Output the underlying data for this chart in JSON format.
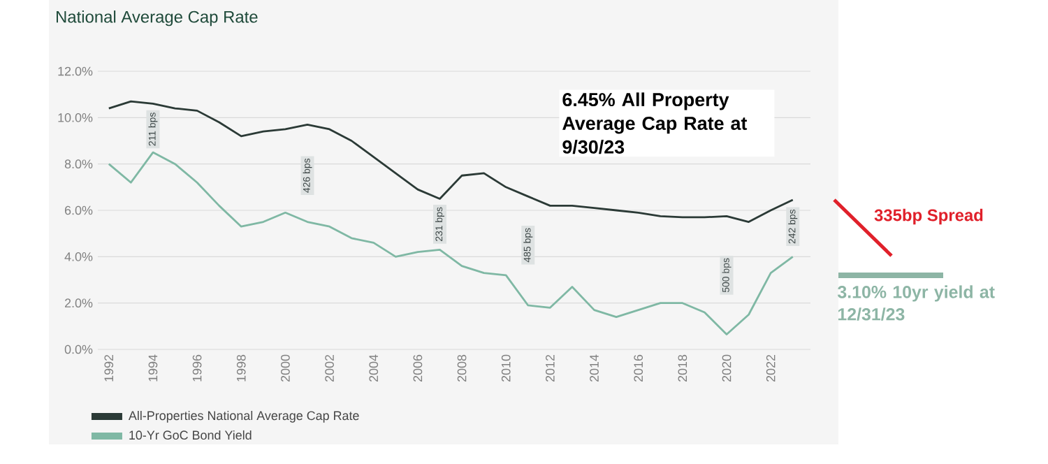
{
  "chart_data": {
    "type": "line",
    "title": "National Average Cap Rate",
    "x": [
      1992,
      1993,
      1994,
      1995,
      1996,
      1997,
      1998,
      1999,
      2000,
      2001,
      2002,
      2003,
      2004,
      2005,
      2006,
      2007,
      2008,
      2009,
      2010,
      2011,
      2012,
      2013,
      2014,
      2015,
      2016,
      2017,
      2018,
      2019,
      2020,
      2021,
      2022,
      2023
    ],
    "series": [
      {
        "name": "All-Properties National Average Cap Rate",
        "color": "#2b3a36",
        "values": [
          10.4,
          10.7,
          10.6,
          10.4,
          10.3,
          9.8,
          9.2,
          9.4,
          9.5,
          9.7,
          9.5,
          9.0,
          8.3,
          7.6,
          6.9,
          6.5,
          7.5,
          7.6,
          7.0,
          6.6,
          6.2,
          6.2,
          6.1,
          6.0,
          5.9,
          5.75,
          5.7,
          5.7,
          5.75,
          5.5,
          6.0,
          6.45
        ]
      },
      {
        "name": "10-Yr GoC Bond Yield",
        "color": "#7fb8a4",
        "values": [
          8.0,
          7.2,
          8.5,
          8.0,
          7.2,
          6.2,
          5.3,
          5.5,
          5.9,
          5.5,
          5.3,
          4.8,
          4.6,
          4.0,
          4.2,
          4.3,
          3.6,
          3.3,
          3.2,
          1.9,
          1.8,
          2.7,
          1.7,
          1.4,
          1.7,
          2.0,
          2.0,
          1.6,
          0.65,
          1.5,
          3.3,
          4.0
        ]
      }
    ],
    "xlim": [
      1991.5,
      2023.8
    ],
    "xticks": [
      1992,
      1994,
      1996,
      1998,
      2000,
      2002,
      2004,
      2006,
      2008,
      2010,
      2012,
      2014,
      2016,
      2018,
      2020,
      2022
    ],
    "ylim": [
      0,
      12
    ],
    "yticks": [
      {
        "value": 0,
        "label": "0.0%"
      },
      {
        "value": 2,
        "label": "2.0%"
      },
      {
        "value": 4,
        "label": "4.0%"
      },
      {
        "value": 6,
        "label": "6.0%"
      },
      {
        "value": 8,
        "label": "8.0%"
      },
      {
        "value": 10,
        "label": "10.0%"
      },
      {
        "value": 12,
        "label": "12.0%"
      }
    ],
    "grid": "y",
    "legend": "bottom",
    "marker": "none",
    "line_style": "solid",
    "annotations": [
      {
        "text": "211 bps",
        "x": 1994,
        "y": 9.5
      },
      {
        "text": "426 bps",
        "x": 2001,
        "y": 7.5
      },
      {
        "text": "231 bps",
        "x": 2007,
        "y": 5.4
      },
      {
        "text": "485 bps",
        "x": 2011,
        "y": 4.5
      },
      {
        "text": "500 bps",
        "x": 2020,
        "y": 3.2
      },
      {
        "text": "242 bps",
        "x": 2023,
        "y": 5.3
      },
      "6.45% All Property Average Cap Rate at 9/30/23",
      "335bp Spread",
      "3.10% 10yr yield at 12/31/23"
    ]
  }
}
